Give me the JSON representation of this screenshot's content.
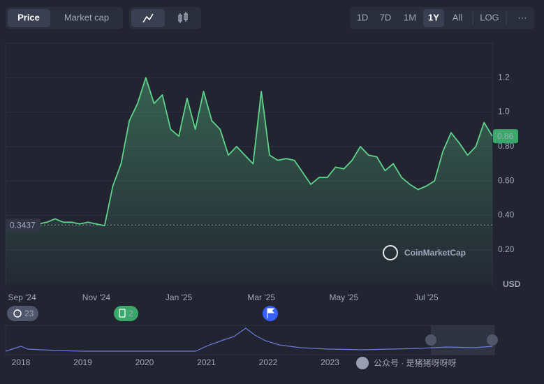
{
  "toolbar": {
    "tabs": [
      "Price",
      "Market cap"
    ],
    "ranges": [
      "1D",
      "7D",
      "1M",
      "1Y",
      "All",
      "LOG",
      "···"
    ]
  },
  "chart_data": {
    "type": "line",
    "categories": [
      null,
      null,
      "Sep '24",
      null,
      null,
      null,
      null,
      null,
      null,
      null,
      null,
      "Nov '24",
      null,
      null,
      null,
      null,
      null,
      null,
      null,
      null,
      null,
      "Jan '25",
      null,
      null,
      null,
      null,
      null,
      null,
      null,
      null,
      null,
      "Mar '25",
      null,
      null,
      null,
      null,
      null,
      null,
      null,
      null,
      null,
      "May '25",
      null,
      null,
      null,
      null,
      null,
      null,
      null,
      null,
      null,
      "Jul '25",
      null,
      null,
      null,
      null,
      null,
      null,
      null,
      null
    ],
    "values": [
      0.36,
      0.37,
      0.35,
      0.35,
      0.35,
      0.36,
      0.38,
      0.36,
      0.36,
      0.35,
      0.36,
      0.35,
      0.34,
      0.57,
      0.7,
      0.95,
      1.05,
      1.2,
      1.05,
      1.1,
      0.9,
      0.86,
      1.08,
      0.9,
      1.12,
      0.95,
      0.9,
      0.75,
      0.8,
      0.75,
      0.7,
      1.12,
      0.75,
      0.72,
      0.73,
      0.72,
      0.65,
      0.58,
      0.62,
      0.62,
      0.68,
      0.67,
      0.72,
      0.8,
      0.75,
      0.74,
      0.66,
      0.7,
      0.62,
      0.58,
      0.55,
      0.57,
      0.6,
      0.77,
      0.88,
      0.82,
      0.75,
      0.8,
      0.94,
      0.86
    ],
    "color": "#5ed38a",
    "ylim": [
      0,
      1.4
    ],
    "yticks": [
      {
        "value": 0.2,
        "label": "0.20"
      },
      {
        "value": 0.4,
        "label": "0.40"
      },
      {
        "value": 0.6,
        "label": "0.60"
      },
      {
        "value": 0.8,
        "label": "0.80"
      },
      {
        "value": 1,
        "label": "1.0"
      },
      1.2
    ],
    "grid": true,
    "y_unit": "USD",
    "start_price": 0.3437,
    "current_price": 0.86,
    "watermark": "CoinMarketCap"
  },
  "events": [
    {
      "count": 23
    },
    {
      "count": 2
    }
  ],
  "navigator": {
    "years": [
      "2018",
      "2019",
      "2020",
      "2021",
      "2022",
      "2023"
    ]
  },
  "footer": "公众号 · 是猪猪呀呀呀"
}
